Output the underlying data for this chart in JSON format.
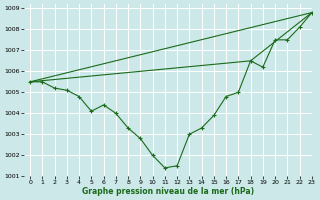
{
  "xlabel": "Graphe pression niveau de la mer (hPa)",
  "bg_color": "#cce8e8",
  "grid_color": "#ffffff",
  "line_color": "#1a6b1a",
  "xlim": [
    -0.5,
    23
  ],
  "ylim": [
    1001,
    1009.2
  ],
  "yticks": [
    1001,
    1002,
    1003,
    1004,
    1005,
    1006,
    1007,
    1008,
    1009
  ],
  "xticks": [
    0,
    1,
    2,
    3,
    4,
    5,
    6,
    7,
    8,
    9,
    10,
    11,
    12,
    13,
    14,
    15,
    16,
    17,
    18,
    19,
    20,
    21,
    22,
    23
  ],
  "series1": [
    1005.5,
    1005.5,
    1005.2,
    1005.1,
    1004.8,
    1004.1,
    1004.4,
    1004.0,
    1003.3,
    1002.8,
    1002.0,
    1001.4,
    1001.5,
    1003.0,
    1003.3,
    1003.9,
    1004.8,
    1005.0,
    1006.5,
    1006.2,
    1007.5,
    1007.5,
    1008.1,
    1008.8
  ],
  "line2_x": [
    0,
    23
  ],
  "line2_y": [
    1005.5,
    1008.8
  ],
  "line3_x": [
    0,
    18,
    23
  ],
  "line3_y": [
    1005.5,
    1006.5,
    1008.8
  ],
  "figsize": [
    3.2,
    2.0
  ],
  "dpi": 100
}
